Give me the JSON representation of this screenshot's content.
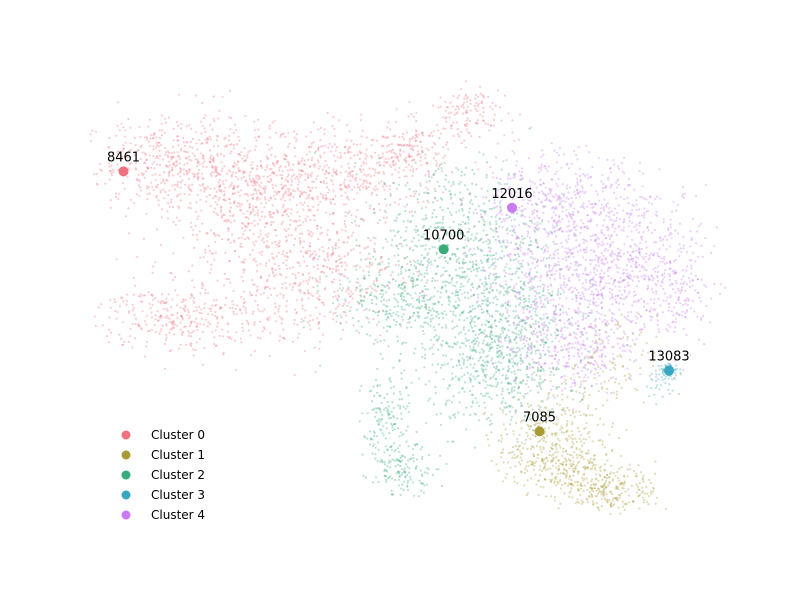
{
  "chart_data": {
    "type": "scatter",
    "title": "",
    "xlabel": "",
    "ylabel": "",
    "axes_visible": false,
    "grid": false,
    "legend_position": "lower-left",
    "point_opacity": 0.35,
    "series": [
      {
        "name": "Cluster 0",
        "color": "#f0717f",
        "regions": [
          {
            "cx": -3.4,
            "cy": 2.7,
            "sx": 0.55,
            "sy": 0.35,
            "n": 420
          },
          {
            "cx": -2.4,
            "cy": 2.2,
            "sx": 0.6,
            "sy": 0.55,
            "n": 520
          },
          {
            "cx": -1.2,
            "cy": 2.5,
            "sx": 0.7,
            "sy": 0.35,
            "n": 420
          },
          {
            "cx": -1.6,
            "cy": 1.0,
            "sx": 0.65,
            "sy": 0.55,
            "n": 560
          },
          {
            "cx": -3.3,
            "cy": 0.3,
            "sx": 0.5,
            "sy": 0.3,
            "n": 320
          },
          {
            "cx": -0.4,
            "cy": 2.9,
            "sx": 0.3,
            "sy": 0.25,
            "n": 150
          },
          {
            "cx": 0.4,
            "cy": 3.5,
            "sx": 0.25,
            "sy": 0.2,
            "n": 120
          }
        ]
      },
      {
        "name": "Cluster 1",
        "color": "#a89a35",
        "regions": [
          {
            "cx": 1.45,
            "cy": -1.6,
            "sx": 0.35,
            "sy": 0.35,
            "n": 300
          },
          {
            "cx": 2.2,
            "cy": -2.4,
            "sx": 0.3,
            "sy": 0.18,
            "n": 240
          },
          {
            "cx": 1.6,
            "cy": -2.1,
            "sx": 0.35,
            "sy": 0.2,
            "n": 180
          },
          {
            "cx": 2.1,
            "cy": -0.5,
            "sx": 0.35,
            "sy": 0.4,
            "n": 110
          }
        ]
      },
      {
        "name": "Cluster 2",
        "color": "#37ab7a",
        "regions": [
          {
            "cx": 0.3,
            "cy": 1.6,
            "sx": 0.55,
            "sy": 0.6,
            "n": 500
          },
          {
            "cx": 0.6,
            "cy": 0.4,
            "sx": 0.55,
            "sy": 0.55,
            "n": 620
          },
          {
            "cx": 0.8,
            "cy": -0.6,
            "sx": 0.45,
            "sy": 0.45,
            "n": 420
          },
          {
            "cx": -0.6,
            "cy": 0.6,
            "sx": 0.4,
            "sy": 0.4,
            "n": 260
          },
          {
            "cx": -0.65,
            "cy": -1.4,
            "sx": 0.15,
            "sy": 0.45,
            "n": 160
          },
          {
            "cx": -0.4,
            "cy": -2.1,
            "sx": 0.2,
            "sy": 0.18,
            "n": 120
          }
        ]
      },
      {
        "name": "Cluster 3",
        "color": "#37a7c0",
        "regions": [
          {
            "cx": 2.95,
            "cy": -0.55,
            "sx": 0.06,
            "sy": 0.06,
            "n": 60
          },
          {
            "cx": 2.85,
            "cy": -0.75,
            "sx": 0.1,
            "sy": 0.12,
            "n": 30
          }
        ]
      },
      {
        "name": "Cluster 4",
        "color": "#c979f2",
        "regions": [
          {
            "cx": 1.5,
            "cy": 2.0,
            "sx": 0.55,
            "sy": 0.45,
            "n": 520
          },
          {
            "cx": 2.4,
            "cy": 1.2,
            "sx": 0.55,
            "sy": 0.55,
            "n": 520
          },
          {
            "cx": 1.7,
            "cy": 0.5,
            "sx": 0.6,
            "sy": 0.5,
            "n": 500
          },
          {
            "cx": 1.7,
            "cy": -0.3,
            "sx": 0.4,
            "sy": 0.3,
            "n": 220
          },
          {
            "cx": 3.1,
            "cy": 0.7,
            "sx": 0.2,
            "sy": 0.4,
            "n": 120
          }
        ]
      }
    ],
    "annotations": [
      {
        "label": "8461",
        "x": -4.0,
        "y": 2.57,
        "series": 0
      },
      {
        "label": "7085",
        "x": 1.3,
        "y": -1.5,
        "series": 1
      },
      {
        "label": "10700",
        "x": 0.08,
        "y": 1.35,
        "series": 2
      },
      {
        "label": "13083",
        "x": 2.95,
        "y": -0.55,
        "series": 3
      },
      {
        "label": "12016",
        "x": 0.95,
        "y": 2.0,
        "series": 4
      }
    ],
    "xlim": [
      -4.3,
      3.6
    ],
    "ylim": [
      -3.2,
      4.0
    ]
  }
}
